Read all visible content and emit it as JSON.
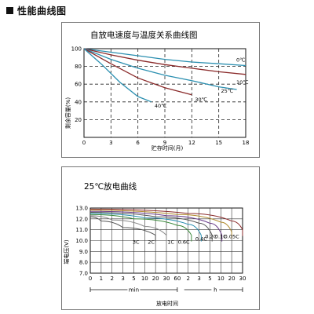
{
  "header": {
    "title": "性能曲线图"
  },
  "chart_data": [
    {
      "type": "line",
      "title": "自放电速度与温度关系曲线图",
      "xlabel": "贮存时间(月)",
      "ylabel": "剩余容量(%)",
      "xlim": [
        0,
        18
      ],
      "ylim": [
        0,
        100
      ],
      "xticks": [
        "0",
        "3",
        "6",
        "9",
        "12",
        "15",
        "18"
      ],
      "yticks": [
        "20",
        "40",
        "60",
        "80",
        "100"
      ],
      "grid": "dashed",
      "series": [
        {
          "name": "0℃",
          "color": "#2b8fb0",
          "x": [
            0,
            3,
            6,
            9,
            12,
            15,
            18
          ],
          "y": [
            100,
            96,
            92,
            88,
            85,
            83,
            81
          ]
        },
        {
          "name": "10℃",
          "color": "#8a2a2a",
          "x": [
            0,
            3,
            6,
            9,
            12,
            15,
            18
          ],
          "y": [
            100,
            93,
            87,
            82,
            78,
            74,
            71
          ]
        },
        {
          "name": "25℃",
          "color": "#2b8fb0",
          "x": [
            0,
            3,
            6,
            9,
            12,
            15,
            17
          ],
          "y": [
            100,
            88,
            78,
            70,
            64,
            57,
            54
          ]
        },
        {
          "name": "30℃",
          "color": "#8a2a2a",
          "x": [
            0,
            3,
            6,
            9,
            12
          ],
          "y": [
            100,
            83,
            67,
            56,
            48
          ]
        },
        {
          "name": "40℃",
          "color": "#2b8fb0",
          "x": [
            0,
            2,
            4,
            6,
            7.5
          ],
          "y": [
            100,
            82,
            62,
            46,
            40
          ]
        }
      ]
    },
    {
      "type": "line",
      "title": "25℃放电曲线",
      "xlabel": "放电时间",
      "ylabel": "端电压(V)",
      "ylim": [
        7.0,
        13.0
      ],
      "yticks": [
        "7.0",
        "8.0",
        "9.0",
        "10.0",
        "11.0",
        "12.0",
        "13.0"
      ],
      "xticks": [
        "0",
        "1",
        "2",
        "3",
        "5",
        "10",
        "20",
        "30",
        "60",
        "2",
        "3",
        "5",
        "10",
        "20",
        "30"
      ],
      "x_unit_labels": [
        "min",
        "h"
      ],
      "grid": "solid",
      "series": [
        {
          "name": "3C",
          "color": "#555555",
          "x_pos": [
            0,
            1,
            3,
            6
          ],
          "y": [
            12.2,
            11.8,
            11.2,
            10.5
          ]
        },
        {
          "name": "2C",
          "color": "#888888",
          "x_pos": [
            0,
            2,
            5,
            7
          ],
          "y": [
            12.3,
            11.9,
            11.3,
            10.5
          ]
        },
        {
          "name": "1C",
          "color": "#3c8a3c",
          "x_pos": [
            0,
            4,
            8,
            9.3
          ],
          "y": [
            12.4,
            12.0,
            11.4,
            10.5
          ]
        },
        {
          "name": "0.6C",
          "color": "#2b8fb0",
          "x_pos": [
            0,
            5,
            9,
            10.2
          ],
          "y": [
            12.5,
            12.1,
            11.5,
            10.5
          ]
        },
        {
          "name": "0.4C",
          "color": "#555555",
          "x_pos": [
            0,
            6,
            10,
            11.2
          ],
          "y": [
            12.6,
            12.2,
            11.6,
            10.5
          ]
        },
        {
          "name": "0.2C",
          "color": "#6a3c8a",
          "x_pos": [
            0,
            7,
            11,
            12.1
          ],
          "y": [
            12.7,
            12.3,
            11.6,
            10.5
          ]
        },
        {
          "name": "0.1C",
          "color": "#b08a2b",
          "x_pos": [
            0,
            8,
            12,
            13
          ],
          "y": [
            12.8,
            12.4,
            11.7,
            10.8
          ]
        },
        {
          "name": "0.05C",
          "color": "#8a2a2a",
          "x_pos": [
            0,
            9,
            13,
            14
          ],
          "y": [
            12.9,
            12.5,
            11.8,
            11.0
          ]
        }
      ]
    }
  ]
}
